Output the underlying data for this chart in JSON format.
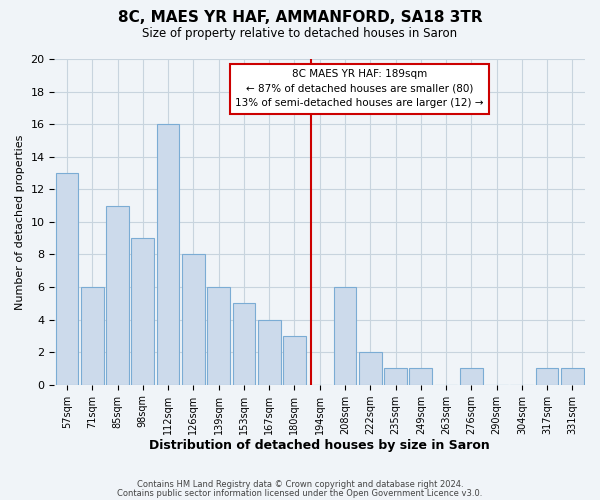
{
  "title": "8C, MAES YR HAF, AMMANFORD, SA18 3TR",
  "subtitle": "Size of property relative to detached houses in Saron",
  "xlabel": "Distribution of detached houses by size in Saron",
  "ylabel": "Number of detached properties",
  "bar_labels": [
    "57sqm",
    "71sqm",
    "85sqm",
    "98sqm",
    "112sqm",
    "126sqm",
    "139sqm",
    "153sqm",
    "167sqm",
    "180sqm",
    "194sqm",
    "208sqm",
    "222sqm",
    "235sqm",
    "249sqm",
    "263sqm",
    "276sqm",
    "290sqm",
    "304sqm",
    "317sqm",
    "331sqm"
  ],
  "bar_heights": [
    13,
    6,
    11,
    9,
    16,
    8,
    6,
    5,
    4,
    3,
    0,
    6,
    2,
    1,
    1,
    0,
    1,
    0,
    0,
    1,
    1
  ],
  "bar_color": "#ccdaeb",
  "bar_edge_color": "#7bacd4",
  "vline_color": "#cc0000",
  "annotation_line1": "8C MAES YR HAF: 189sqm",
  "annotation_line2": "← 87% of detached houses are smaller (80)",
  "annotation_line3": "13% of semi-detached houses are larger (12) →",
  "ylim": [
    0,
    20
  ],
  "yticks": [
    0,
    2,
    4,
    6,
    8,
    10,
    12,
    14,
    16,
    18,
    20
  ],
  "footer_line1": "Contains HM Land Registry data © Crown copyright and database right 2024.",
  "footer_line2": "Contains public sector information licensed under the Open Government Licence v3.0.",
  "background_color": "#f0f4f8",
  "grid_color": "#c8d4de"
}
